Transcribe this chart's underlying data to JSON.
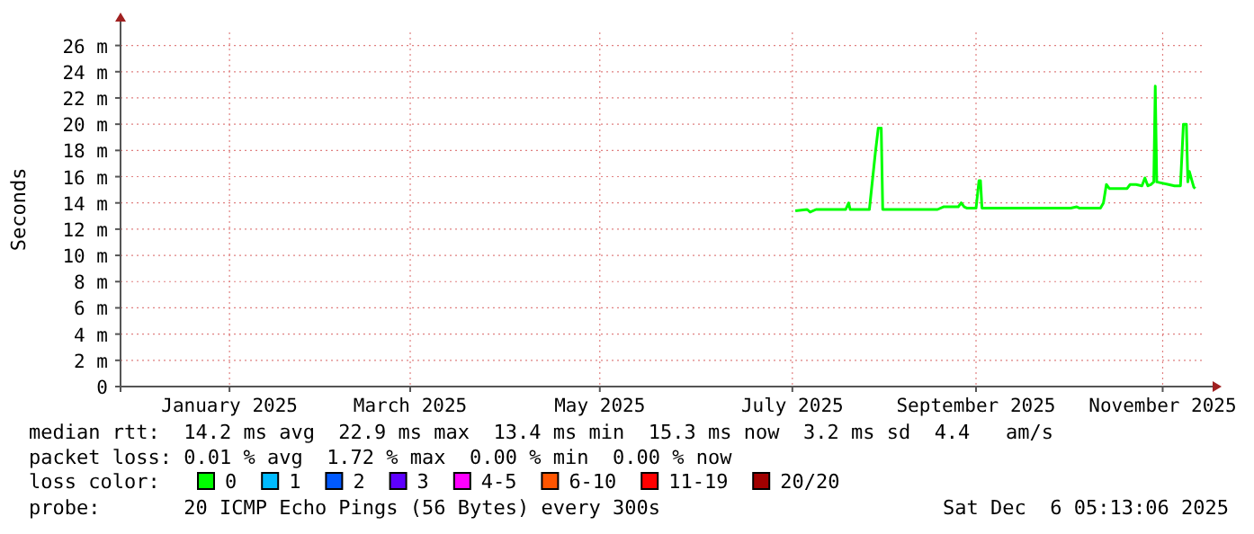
{
  "chart_data": {
    "type": "line",
    "ylabel": "Seconds",
    "legend_title": "loss color:",
    "legend": "bottom",
    "grid": true,
    "marker": "none",
    "line_style": "solid",
    "xlim": [
      "2024-12-06T05:13",
      "2025-12-06T05:13"
    ],
    "xticks": [
      {
        "value": "2025-01-12",
        "label": "January 2025"
      },
      {
        "value": "2025-03-14",
        "label": "March 2025"
      },
      {
        "value": "2025-05-17",
        "label": "May 2025"
      },
      {
        "value": "2025-07-21",
        "label": "July 2025"
      },
      {
        "value": "2025-09-21",
        "label": "September 2025"
      },
      {
        "value": "2025-11-23",
        "label": "November 2025"
      }
    ],
    "ylim": [
      0,
      27
    ],
    "yticks": [
      0,
      {
        "value": 2,
        "label": "2 m"
      },
      {
        "value": 4,
        "label": "4 m"
      },
      {
        "value": 6,
        "label": "6 m"
      },
      {
        "value": 8,
        "label": "8 m"
      },
      {
        "value": 10,
        "label": "10 m"
      },
      {
        "value": 12,
        "label": "12 m"
      },
      {
        "value": 14,
        "label": "14 m"
      },
      {
        "value": 16,
        "label": "16 m"
      },
      {
        "value": 18,
        "label": "18 m"
      },
      {
        "value": 20,
        "label": "20 m"
      },
      {
        "value": 22,
        "label": "22 m"
      },
      {
        "value": 24,
        "label": "24 m"
      },
      {
        "value": 26,
        "label": "26 m"
      }
    ],
    "x": [
      "2025-07-22",
      "2025-07-26",
      "2025-07-27",
      "2025-07-29",
      "2025-08-08",
      "2025-08-09",
      "2025-08-09T12:00",
      "2025-08-16",
      "2025-08-18",
      "2025-08-19",
      "2025-08-20",
      "2025-08-20T12:00",
      "2025-09-08",
      "2025-09-10",
      "2025-09-15",
      "2025-09-16",
      "2025-09-17",
      "2025-09-18",
      "2025-09-21",
      "2025-09-22",
      "2025-09-22T12:00",
      "2025-09-23",
      "2025-09-30",
      "2025-10-23",
      "2025-10-25",
      "2025-10-26",
      "2025-11-02",
      "2025-11-03",
      "2025-11-04",
      "2025-11-05",
      "2025-11-11",
      "2025-11-12",
      "2025-11-14",
      "2025-11-16",
      "2025-11-17",
      "2025-11-18",
      "2025-11-19",
      "2025-11-20",
      "2025-11-20T12:00",
      "2025-11-21",
      "2025-11-25",
      "2025-11-27",
      "2025-11-29",
      "2025-11-30",
      "2025-12-01",
      "2025-12-01T12:00",
      "2025-12-02",
      "2025-12-03",
      "2025-12-03T12:00",
      "2025-12-04"
    ],
    "series": [
      {
        "name": "0",
        "color": "#00ff00",
        "values": [
          13.4,
          13.5,
          13.3,
          13.5,
          13.5,
          14.0,
          13.5,
          13.5,
          17.8,
          19.7,
          19.7,
          13.5,
          13.5,
          13.7,
          13.7,
          14.0,
          13.7,
          13.6,
          13.6,
          15.7,
          15.7,
          13.6,
          13.6,
          13.6,
          13.7,
          13.6,
          13.6,
          14.0,
          15.4,
          15.1,
          15.1,
          15.4,
          15.4,
          15.3,
          15.9,
          15.3,
          15.4,
          15.6,
          22.9,
          15.6,
          15.4,
          15.3,
          15.3,
          20.0,
          20.0,
          15.6,
          16.4,
          15.6,
          15.2,
          15.1
        ]
      },
      {
        "name": "1",
        "color": "#00bbff",
        "values": [
          null,
          null,
          null,
          null,
          null,
          null,
          null,
          null,
          null,
          null,
          null,
          null,
          null,
          null,
          null,
          null,
          null,
          null,
          null,
          null,
          null,
          null,
          null,
          null,
          null,
          null,
          null,
          null,
          null,
          null,
          null,
          null,
          null,
          null,
          null,
          null,
          null,
          null,
          null,
          null,
          null,
          null,
          null,
          null,
          null,
          null,
          null,
          null,
          null,
          null
        ]
      },
      {
        "name": "2",
        "color": "#0059ff",
        "values": [
          null,
          null,
          null,
          null,
          null,
          null,
          null,
          null,
          null,
          null,
          null,
          null,
          null,
          null,
          null,
          null,
          null,
          null,
          null,
          null,
          null,
          null,
          null,
          null,
          null,
          null,
          null,
          null,
          null,
          null,
          null,
          null,
          null,
          null,
          null,
          null,
          null,
          null,
          null,
          null,
          null,
          null,
          null,
          null,
          null,
          null,
          null,
          null,
          null,
          null
        ]
      },
      {
        "name": "3",
        "color": "#5e00ff",
        "values": [
          null,
          null,
          null,
          null,
          null,
          null,
          null,
          null,
          null,
          null,
          null,
          null,
          null,
          null,
          null,
          null,
          null,
          null,
          null,
          null,
          null,
          null,
          null,
          null,
          null,
          null,
          null,
          null,
          null,
          null,
          null,
          null,
          null,
          null,
          null,
          null,
          null,
          null,
          null,
          null,
          null,
          null,
          null,
          null,
          null,
          null,
          null,
          null,
          null,
          null
        ]
      },
      {
        "name": "4-5",
        "color": "#ff00ff",
        "values": [
          null,
          null,
          null,
          null,
          null,
          null,
          null,
          null,
          null,
          null,
          null,
          null,
          null,
          null,
          null,
          null,
          null,
          null,
          null,
          null,
          null,
          null,
          null,
          null,
          null,
          null,
          null,
          null,
          null,
          null,
          null,
          null,
          null,
          null,
          null,
          null,
          null,
          null,
          null,
          null,
          null,
          null,
          null,
          null,
          null,
          null,
          null,
          null,
          null,
          null
        ]
      },
      {
        "name": "6-10",
        "color": "#ff5500",
        "values": [
          null,
          null,
          null,
          null,
          null,
          null,
          null,
          null,
          null,
          null,
          null,
          null,
          null,
          null,
          null,
          null,
          null,
          null,
          null,
          null,
          null,
          null,
          null,
          null,
          null,
          null,
          null,
          null,
          null,
          null,
          null,
          null,
          null,
          null,
          null,
          null,
          null,
          null,
          null,
          null,
          null,
          null,
          null,
          null,
          null,
          null,
          null,
          null,
          null,
          null
        ]
      },
      {
        "name": "11-19",
        "color": "#ff0000",
        "values": [
          null,
          null,
          null,
          null,
          null,
          null,
          null,
          null,
          null,
          null,
          null,
          null,
          null,
          null,
          null,
          null,
          null,
          null,
          null,
          null,
          null,
          null,
          null,
          null,
          null,
          null,
          null,
          null,
          null,
          null,
          null,
          null,
          null,
          null,
          null,
          null,
          null,
          null,
          null,
          null,
          null,
          null,
          null,
          null,
          null,
          null,
          null,
          null,
          null,
          null
        ]
      },
      {
        "name": "20/20",
        "color": "#a10000",
        "values": [
          null,
          null,
          null,
          null,
          null,
          null,
          null,
          null,
          null,
          null,
          null,
          null,
          null,
          null,
          null,
          null,
          null,
          null,
          null,
          null,
          null,
          null,
          null,
          null,
          null,
          null,
          null,
          null,
          null,
          null,
          null,
          null,
          null,
          null,
          null,
          null,
          null,
          null,
          null,
          null,
          null,
          null,
          null,
          null,
          null,
          null,
          null,
          null,
          null,
          null
        ]
      }
    ],
    "annotations": [
      "median rtt:  14.2 ms avg  22.9 ms max  13.4 ms min  15.3 ms now  3.2 ms sd  4.4   am/s",
      "packet loss: 0.01 % avg  1.72 % max  0.00 % min  0.00 % now",
      "probe:       20 ICMP Echo Pings (56 Bytes) every 300s",
      "Sat Dec  6 05:13:06 2025"
    ]
  }
}
